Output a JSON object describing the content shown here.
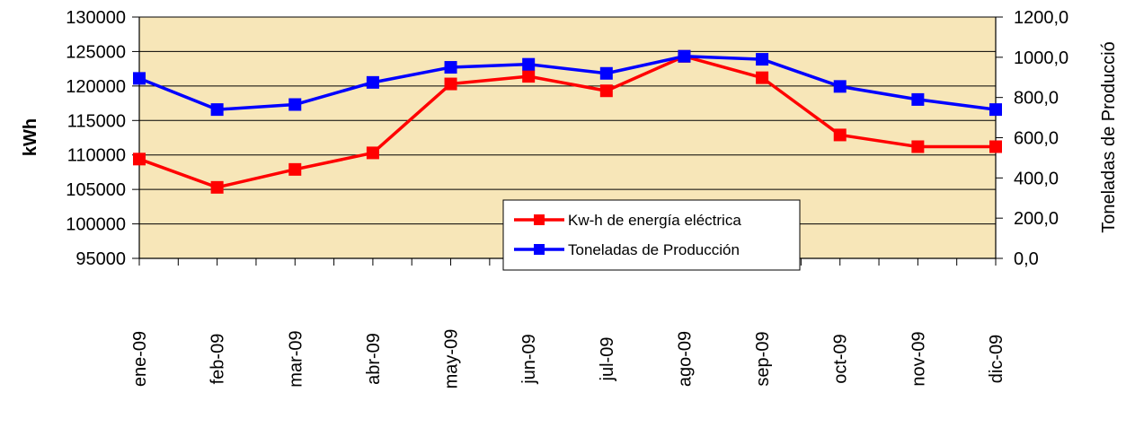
{
  "colors": {
    "plot_fill": "#f7e6b8",
    "grid": "#000000",
    "energy": "#ff0000",
    "production": "#0000ff"
  },
  "chart_data": {
    "type": "line",
    "categories": [
      "ene-09",
      "feb-09",
      "mar-09",
      "abr-09",
      "may-09",
      "jun-09",
      "jul-09",
      "ago-09",
      "sep-09",
      "oct-09",
      "nov-09",
      "dic-09"
    ],
    "series": [
      {
        "name": "Kw-h de energía eléctrica",
        "axis": "left",
        "values": [
          109400,
          105300,
          107900,
          110300,
          120300,
          121400,
          119300,
          124300,
          121200,
          112900,
          111200,
          111200
        ]
      },
      {
        "name": "Toneladas de Producción",
        "axis": "right",
        "values": [
          895,
          740,
          765,
          875,
          950,
          965,
          920,
          1005,
          990,
          855,
          790,
          740
        ]
      }
    ],
    "ylabel": "kWh",
    "y2label": "Toneladas de  Producció",
    "ylim": [
      95000,
      130000
    ],
    "y2lim": [
      0,
      1200
    ],
    "yticks": [
      "95000",
      "100000",
      "105000",
      "110000",
      "115000",
      "120000",
      "125000",
      "130000"
    ],
    "y2ticks": [
      "0,0",
      "200,0",
      "400,0",
      "600,0",
      "800,0",
      "1000,0",
      "1200,0"
    ],
    "grid": true,
    "legend_position": "center-right"
  }
}
